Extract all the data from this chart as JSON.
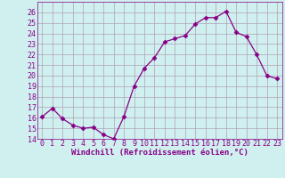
{
  "x": [
    0,
    1,
    2,
    3,
    4,
    5,
    6,
    7,
    8,
    9,
    10,
    11,
    12,
    13,
    14,
    15,
    16,
    17,
    18,
    19,
    20,
    21,
    22,
    23
  ],
  "y": [
    16.1,
    16.9,
    15.9,
    15.3,
    15.0,
    15.1,
    14.4,
    14.0,
    16.1,
    19.0,
    20.7,
    21.7,
    23.2,
    23.5,
    23.8,
    24.9,
    25.5,
    25.5,
    26.1,
    24.1,
    23.7,
    22.0,
    20.0,
    19.7
  ],
  "line_color": "#880088",
  "marker": "D",
  "marker_size": 2.5,
  "bg_color": "#cff0ee",
  "grid_color": "#b0a0b8",
  "xlabel": "Windchill (Refroidissement éolien,°C)",
  "ylim": [
    14,
    27
  ],
  "xlim": [
    -0.5,
    23.5
  ],
  "yticks": [
    14,
    15,
    16,
    17,
    18,
    19,
    20,
    21,
    22,
    23,
    24,
    25,
    26
  ],
  "xticks": [
    0,
    1,
    2,
    3,
    4,
    5,
    6,
    7,
    8,
    9,
    10,
    11,
    12,
    13,
    14,
    15,
    16,
    17,
    18,
    19,
    20,
    21,
    22,
    23
  ],
  "xtick_labels": [
    "0",
    "1",
    "2",
    "3",
    "4",
    "5",
    "6",
    "7",
    "8",
    "9",
    "10",
    "11",
    "12",
    "13",
    "14",
    "15",
    "16",
    "17",
    "18",
    "19",
    "20",
    "21",
    "22",
    "23"
  ],
  "label_fontsize": 6.5,
  "tick_fontsize": 6.0
}
